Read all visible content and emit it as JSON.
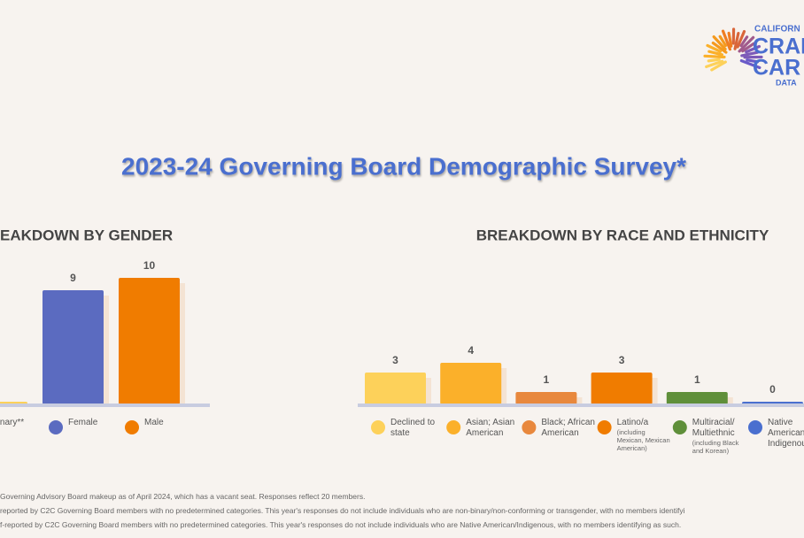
{
  "header": {
    "title": "2023-24 Governing Board Demographic Survey*"
  },
  "logo": {
    "lines": [
      "CALIFORN",
      "CRADL",
      "CAR",
      "DATA"
    ]
  },
  "chart_data": [
    {
      "type": "bar",
      "title": "EAKDOWN BY GENDER",
      "categories": [
        "Binary**",
        "Female",
        "Male"
      ],
      "values": [
        0,
        9,
        10
      ],
      "colors": [
        "#fdd15a",
        "#5b6bc0",
        "#f07c00"
      ],
      "ylim": [
        0,
        10
      ]
    },
    {
      "type": "bar",
      "title": "BREAKDOWN BY RACE AND ETHNICITY",
      "categories": [
        "Declined to state",
        "Asian; Asian American",
        "Black; African American",
        "Latino/a",
        "Multiracial/ Multiethnic",
        "Native American/ Indigenous**"
      ],
      "category_notes": [
        null,
        null,
        null,
        "(including Mexican, Mexican American)",
        "(including Black and Korean)",
        null
      ],
      "values": [
        3,
        4,
        1,
        3,
        1,
        0
      ],
      "colors": [
        "#fdd15a",
        "#fbb02a",
        "#e8883d",
        "#f07c00",
        "#5f8f3a",
        "#4a6fcf"
      ],
      "ylim": [
        0,
        4
      ]
    }
  ],
  "footnotes": [
    "Governing Advisory Board makeup as of April 2024, which has a vacant seat. Responses reflect 20 members.",
    "reported by C2C Governing Board members with no predetermined categories. This year's responses do not include individuals who are non-binary/non-conforming or transgender, with no members identifyi",
    "f-reported by C2C Governing Board members with no predetermined categories. This year's responses do  not include individuals who are Native American/Indigenous, with no members identifying as such."
  ]
}
